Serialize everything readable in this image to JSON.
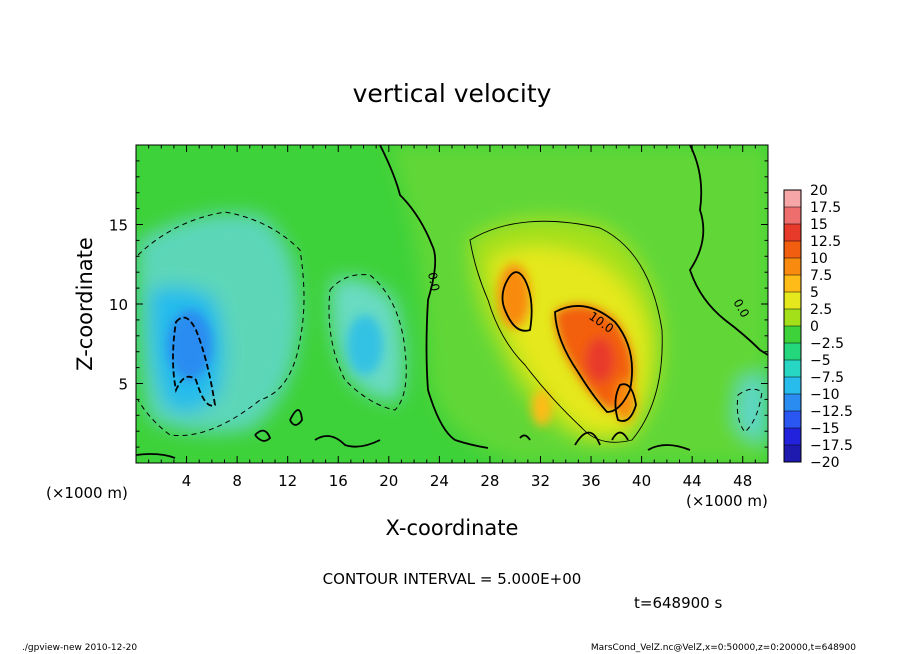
{
  "chart_data": {
    "type": "heatmap",
    "title": "vertical velocity",
    "xlabel": "X-coordinate",
    "ylabel": "Z-coordinate",
    "x_unit": "(×1000 m)",
    "z_unit": "(×1000 m)",
    "xlim": [
      0,
      50
    ],
    "ylim": [
      0,
      20
    ],
    "x_ticks": [
      4,
      8,
      12,
      16,
      20,
      24,
      28,
      32,
      36,
      40,
      44,
      48
    ],
    "y_ticks": [
      5,
      10,
      15
    ],
    "colorbar": {
      "levels": [
        20,
        17.5,
        15,
        12.5,
        10,
        7.5,
        5,
        2.5,
        0,
        -2.5,
        -5,
        -7.5,
        -10,
        -12.5,
        -15,
        -17.5,
        -20
      ],
      "labels": [
        "20",
        "17.5",
        "15",
        "12.5",
        "10",
        "7.5",
        "5",
        "2.5",
        "0",
        "−2.5",
        "−5",
        "−7.5",
        "−10",
        "−12.5",
        "−15",
        "−17.5",
        "−20"
      ],
      "colors": [
        "#f6a6a6",
        "#ee6e6e",
        "#e83a2a",
        "#f25e10",
        "#f88a10",
        "#ffbb18",
        "#e4e81c",
        "#a4e01a",
        "#3ed23a",
        "#24d67c",
        "#28d6c4",
        "#28bcec",
        "#2a8cf0",
        "#2a56f2",
        "#2222dc",
        "#1e1ab0",
        "#6a28c0"
      ]
    },
    "contour_interval_text": "CONTOUR INTERVAL = 5.000E+00",
    "contour_labels": [
      "0.0",
      "10.0",
      "0.0",
      "0.0"
    ],
    "features": [
      {
        "kind": "updraft",
        "x": 37,
        "z": 6.5,
        "w": 12.5
      },
      {
        "kind": "updraft",
        "x": 29.5,
        "z": 10.5,
        "w": 10
      },
      {
        "kind": "updraft",
        "x": 38.5,
        "z": 3.5,
        "w": 12
      },
      {
        "kind": "updraft",
        "x": 32,
        "z": 3,
        "w": 7
      },
      {
        "kind": "downdraft",
        "x": 4.5,
        "z": 7,
        "w": -7.5
      },
      {
        "kind": "downdraft",
        "x": 7,
        "z": 11,
        "w": -3
      },
      {
        "kind": "downdraft",
        "x": 18,
        "z": 7,
        "w": -3.5
      },
      {
        "kind": "downdraft",
        "x": 49,
        "z": 3,
        "w": -3
      }
    ],
    "time_text": "t=648900 s"
  },
  "footer": {
    "left": "./gpview-new  2010-12-20",
    "right": "MarsCond_VelZ.nc@VelZ,x=0:50000,z=0:20000,t=648900"
  }
}
